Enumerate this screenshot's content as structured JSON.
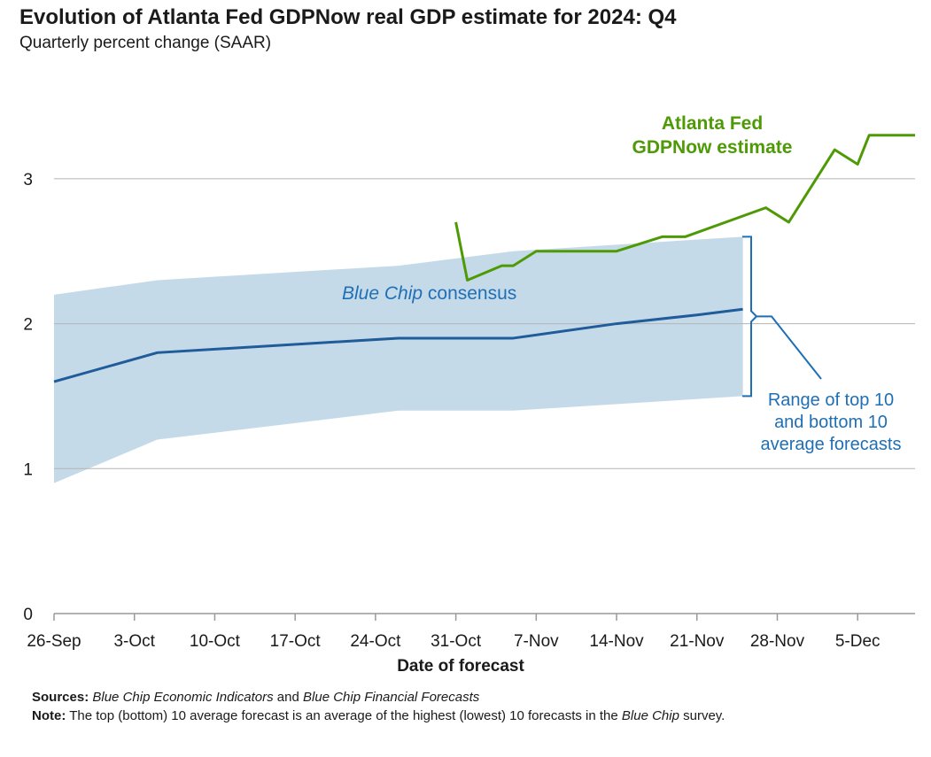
{
  "chart_data": {
    "type": "line",
    "title": "Evolution of Atlanta Fed GDPNow real GDP estimate for 2024: Q4",
    "subtitle": "Quarterly percent change (SAAR)",
    "xlabel": "Date of forecast",
    "ylabel": "",
    "ylim": [
      0,
      3.5
    ],
    "yticks": [
      0,
      1,
      2,
      3
    ],
    "xlim": [
      "2024-09-26",
      "2024-12-10"
    ],
    "x_ticks": [
      "2024-09-26",
      "2024-10-03",
      "2024-10-10",
      "2024-10-17",
      "2024-10-24",
      "2024-10-31",
      "2024-11-07",
      "2024-11-14",
      "2024-11-21",
      "2024-11-28",
      "2024-12-05"
    ],
    "x_tick_labels": [
      "26-Sep",
      "3-Oct",
      "10-Oct",
      "17-Oct",
      "24-Oct",
      "31-Oct",
      "7-Nov",
      "14-Nov",
      "21-Nov",
      "28-Nov",
      "5-Dec"
    ],
    "grid": true,
    "series": [
      {
        "name": "Atlanta Fed GDPNow estimate",
        "label_lines": [
          "Atlanta Fed",
          "GDPNow estimate"
        ],
        "color": "#4e9a06",
        "points": [
          [
            "2024-10-31",
            2.7
          ],
          [
            "2024-11-01",
            2.3
          ],
          [
            "2024-11-04",
            2.4
          ],
          [
            "2024-11-05",
            2.4
          ],
          [
            "2024-11-07",
            2.5
          ],
          [
            "2024-11-14",
            2.5
          ],
          [
            "2024-11-18",
            2.6
          ],
          [
            "2024-11-20",
            2.6
          ],
          [
            "2024-11-27",
            2.8
          ],
          [
            "2024-11-29",
            2.7
          ],
          [
            "2024-12-03",
            3.2
          ],
          [
            "2024-12-05",
            3.1
          ],
          [
            "2024-12-06",
            3.3
          ],
          [
            "2024-12-10",
            3.3
          ]
        ]
      },
      {
        "name": "Blue Chip consensus",
        "label_italic": "Blue Chip",
        "label_rest": " consensus",
        "color": "#1f5c99",
        "points": [
          [
            "2024-09-26",
            1.6
          ],
          [
            "2024-10-05",
            1.8
          ],
          [
            "2024-10-26",
            1.9
          ],
          [
            "2024-11-05",
            1.9
          ],
          [
            "2024-11-14",
            2.0
          ],
          [
            "2024-11-21",
            2.06
          ],
          [
            "2024-11-25",
            2.1
          ]
        ]
      }
    ],
    "range_band": {
      "label_lines": [
        "Range of top 10",
        "and bottom 10",
        "average forecasts"
      ],
      "fill": "#c5dae9",
      "upper": [
        [
          "2024-09-26",
          2.2
        ],
        [
          "2024-10-05",
          2.3
        ],
        [
          "2024-10-26",
          2.4
        ],
        [
          "2024-11-05",
          2.5
        ],
        [
          "2024-11-25",
          2.6
        ]
      ],
      "lower": [
        [
          "2024-09-26",
          0.9
        ],
        [
          "2024-10-05",
          1.2
        ],
        [
          "2024-10-26",
          1.4
        ],
        [
          "2024-11-05",
          1.4
        ],
        [
          "2024-11-25",
          1.5
        ]
      ]
    },
    "annotation_color": "#1f6fb5"
  },
  "footer": {
    "sources_label": "Sources:",
    "sources_italic_1": "Blue Chip Economic Indicators",
    "sources_mid": " and ",
    "sources_italic_2": "Blue Chip Financial Forecasts",
    "note_label": "Note:",
    "note_text": " The top (bottom) 10 average forecast is an average of the highest (lowest) 10 forecasts in the ",
    "note_italic": "Blue Chip",
    "note_end": " survey."
  }
}
